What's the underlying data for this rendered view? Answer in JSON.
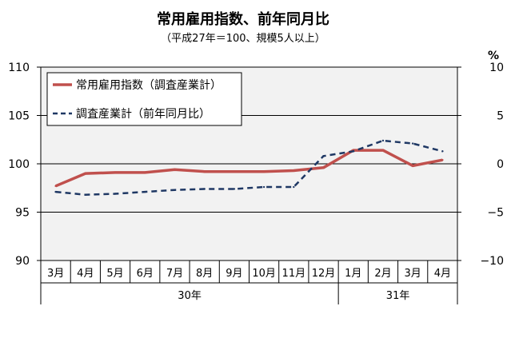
{
  "chart_data": {
    "type": "line",
    "title": "常用雇用指数、前年同月比",
    "subtitle": "（平成27年＝100、規模5人以上）",
    "categories": [
      "3月",
      "4月",
      "5月",
      "6月",
      "7月",
      "8月",
      "9月",
      "10月",
      "11月",
      "12月",
      "1月",
      "2月",
      "3月",
      "4月"
    ],
    "groups": [
      {
        "label": "30年",
        "count": 10
      },
      {
        "label": "31年",
        "count": 4
      }
    ],
    "y_left": {
      "ticks": [
        "90",
        "95",
        "100",
        "105",
        "110"
      ],
      "min": 90,
      "max": 110
    },
    "y_right": {
      "unit": "%",
      "ticks": [
        "−10",
        "−5",
        "0",
        "5",
        "10"
      ],
      "min": -10,
      "max": 10
    },
    "grid": "horizontal",
    "legend_position": "top-left",
    "series": [
      {
        "name": "常用雇用指数（調査産業計）",
        "axis": "left",
        "color": "#c0504d",
        "style": "solid",
        "values": [
          97.7,
          99.0,
          99.1,
          99.1,
          99.4,
          99.2,
          99.2,
          99.2,
          99.3,
          99.6,
          101.4,
          101.4,
          99.8,
          100.4
        ]
      },
      {
        "name": "調査産業計（前年同月比）",
        "axis": "right",
        "color": "#1f3864",
        "style": "dashed",
        "values": [
          -2.9,
          -3.2,
          -3.1,
          -2.9,
          -2.7,
          -2.6,
          -2.6,
          -2.4,
          -2.4,
          0.8,
          1.3,
          2.4,
          2.1,
          1.3
        ]
      }
    ]
  }
}
